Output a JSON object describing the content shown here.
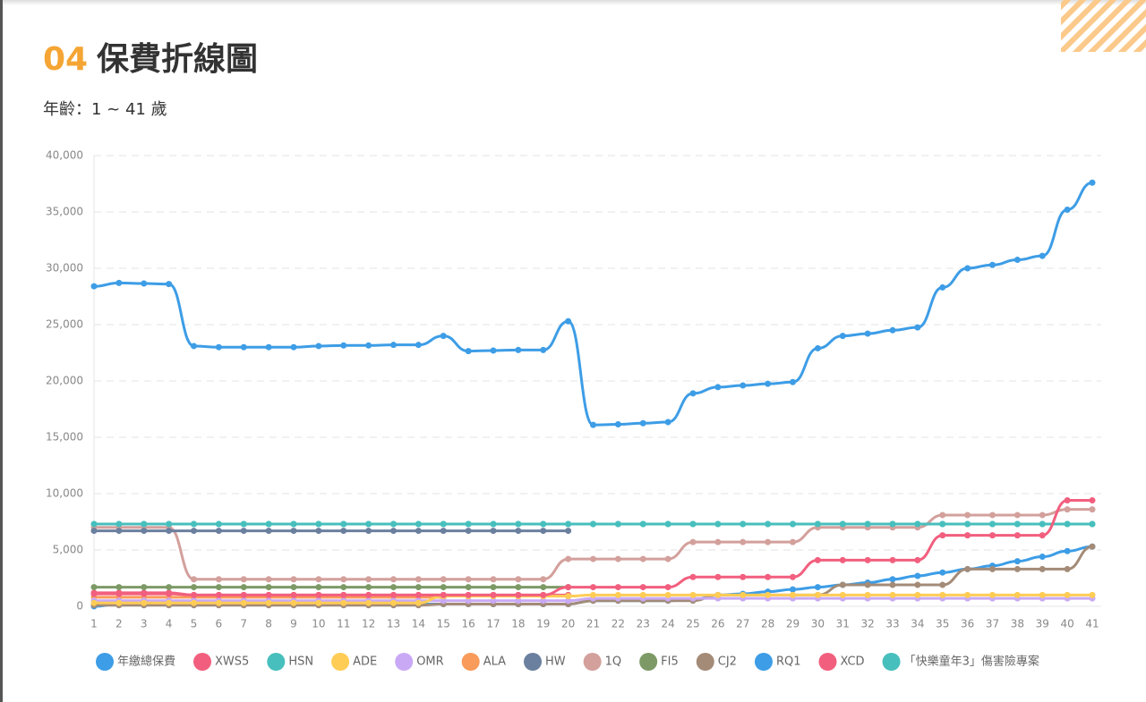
{
  "section": "04",
  "chart_data": {
    "type": "line",
    "title": "保費折線圖",
    "subtitle": "年齡：1 ~ 41 歲",
    "categories": [
      1,
      2,
      3,
      4,
      5,
      6,
      7,
      8,
      9,
      10,
      11,
      12,
      13,
      14,
      15,
      16,
      17,
      18,
      19,
      20,
      21,
      22,
      23,
      24,
      25,
      26,
      27,
      28,
      29,
      30,
      31,
      32,
      33,
      34,
      35,
      36,
      37,
      38,
      39,
      40,
      41
    ],
    "ylim": [
      0,
      40000
    ],
    "yticks": [
      0,
      {
        "value": 5000,
        "label": "5,000"
      },
      {
        "value": 10000,
        "label": "10,000"
      },
      {
        "value": 15000,
        "label": "15,000"
      },
      {
        "value": 20000,
        "label": "20,000"
      },
      {
        "value": 25000,
        "label": "25,000"
      },
      {
        "value": 30000,
        "label": "30,000"
      },
      {
        "value": 35000,
        "label": "35,000"
      },
      {
        "value": 40000,
        "label": "40,000"
      }
    ],
    "grid": true,
    "legend": "bottom",
    "series": [
      {
        "name": "年繳總保費",
        "color": "#3d9de6",
        "values": [
          28400,
          28700,
          28650,
          28600,
          23100,
          23000,
          23000,
          23000,
          23000,
          23100,
          23150,
          23150,
          23200,
          23200,
          24000,
          22650,
          22700,
          22750,
          22750,
          25300,
          16100,
          16150,
          16250,
          16350,
          18900,
          19450,
          19600,
          19750,
          19900,
          22900,
          24000,
          24200,
          24500,
          24750,
          28300,
          30000,
          30300,
          30750,
          31100,
          35200,
          37600
        ]
      },
      {
        "name": "XWS5",
        "color": "#f25f7e",
        "values": [
          1100,
          1100,
          1100,
          1100,
          1000,
          1000,
          1000,
          1000,
          1000,
          1000,
          1000,
          1000,
          1000,
          1000,
          1000,
          1000,
          1000,
          1000,
          1000,
          1700,
          1700,
          1700,
          1700,
          1700,
          2600,
          2600,
          2600,
          2600,
          2600,
          4100,
          4100,
          4100,
          4100,
          4100,
          6300,
          6300,
          6300,
          6300,
          6300,
          9400,
          9400
        ]
      },
      {
        "name": "HSN",
        "color": "#47bfbd",
        "values": [
          7300,
          7300,
          7300,
          7300,
          7300,
          7300,
          7300,
          7300,
          7300,
          7300,
          7300,
          7300,
          7300,
          7300,
          7300,
          7300,
          7300,
          7300,
          7300,
          7300,
          7300,
          7300,
          7300,
          7300,
          7300,
          7300,
          7300,
          7300,
          7300,
          7300,
          7300,
          7300,
          7300,
          7300,
          7300,
          7300,
          7300,
          7300,
          7300,
          7300,
          7300
        ]
      },
      {
        "name": "ADE",
        "color": "#ffcc55",
        "values": [
          300,
          300,
          300,
          300,
          300,
          300,
          300,
          300,
          300,
          300,
          300,
          300,
          300,
          300,
          900,
          900,
          900,
          900,
          900,
          900,
          1000,
          1000,
          1000,
          1000,
          1000,
          1000,
          1000,
          1000,
          1000,
          1000,
          1000,
          1000,
          1000,
          1000,
          1000,
          1000,
          1000,
          1000,
          1000,
          1000,
          1000
        ]
      },
      {
        "name": "OMR",
        "color": "#c9a9f5",
        "values": [
          500,
          500,
          500,
          500,
          500,
          500,
          500,
          500,
          500,
          500,
          500,
          500,
          500,
          500,
          500,
          500,
          500,
          500,
          500,
          500,
          700,
          700,
          700,
          700,
          700,
          700,
          700,
          700,
          700,
          700,
          700,
          700,
          700,
          700,
          700,
          700,
          700,
          700,
          700,
          700,
          700
        ]
      },
      {
        "name": "ALA",
        "color": "#f99b5a",
        "values": [
          800,
          800,
          800,
          800,
          800,
          800,
          800,
          800,
          800,
          800,
          800,
          800,
          800,
          800,
          800,
          null,
          null,
          null,
          null,
          null,
          null,
          null,
          null,
          null,
          null,
          null,
          null,
          null,
          null,
          null,
          null,
          null,
          null,
          null,
          null,
          null,
          null,
          null,
          null,
          null,
          null
        ]
      },
      {
        "name": "HW",
        "color": "#6b7f9e",
        "values": [
          6700,
          6700,
          6700,
          6700,
          6700,
          6700,
          6700,
          6700,
          6700,
          6700,
          6700,
          6700,
          6700,
          6700,
          6700,
          6700,
          6700,
          6700,
          6700,
          6700,
          null,
          null,
          null,
          null,
          null,
          null,
          null,
          null,
          null,
          null,
          null,
          null,
          null,
          null,
          null,
          null,
          null,
          null,
          null,
          null,
          null
        ]
      },
      {
        "name": "1Q",
        "color": "#d3a09c",
        "values": [
          7000,
          7000,
          7000,
          7000,
          2400,
          2400,
          2400,
          2400,
          2400,
          2400,
          2400,
          2400,
          2400,
          2400,
          2400,
          2400,
          2400,
          2400,
          2400,
          4200,
          4200,
          4200,
          4200,
          4200,
          5700,
          5700,
          5700,
          5700,
          5700,
          7000,
          7000,
          7000,
          7000,
          7000,
          8100,
          8100,
          8100,
          8100,
          8100,
          8600,
          8600
        ]
      },
      {
        "name": "FI5",
        "color": "#7d9a66",
        "values": [
          1700,
          1700,
          1700,
          1700,
          1700,
          1700,
          1700,
          1700,
          1700,
          1700,
          1700,
          1700,
          1700,
          1700,
          1700,
          1700,
          1700,
          1700,
          1700,
          1700,
          null,
          null,
          null,
          null,
          null,
          null,
          null,
          null,
          null,
          null,
          null,
          null,
          null,
          null,
          null,
          null,
          null,
          null,
          null,
          null,
          null
        ]
      },
      {
        "name": "CJ2",
        "color": "#a38b78",
        "values": [
          100,
          100,
          100,
          100,
          100,
          100,
          100,
          100,
          100,
          100,
          100,
          100,
          100,
          100,
          200,
          200,
          200,
          200,
          200,
          200,
          500,
          500,
          500,
          500,
          500,
          1000,
          1000,
          1000,
          1000,
          1000,
          1900,
          1900,
          1900,
          1900,
          1900,
          3300,
          3300,
          3300,
          3300,
          3300,
          5300
        ]
      },
      {
        "name": "RQ1",
        "color": "#3d9de6",
        "values": [
          0,
          200,
          200,
          200,
          200,
          200,
          200,
          200,
          200,
          200,
          200,
          200,
          200,
          200,
          200,
          200,
          200,
          200,
          200,
          200,
          500,
          500,
          500,
          500,
          600,
          1000,
          1100,
          1300,
          1500,
          1700,
          1900,
          2100,
          2400,
          2700,
          3000,
          3300,
          3600,
          4000,
          4400,
          4900,
          5300
        ]
      },
      {
        "name": "XCD",
        "color": "#f25f7e",
        "values": [
          1200,
          1200,
          1200,
          1200,
          1000,
          1000,
          1000,
          1000,
          1000,
          1000,
          1000,
          1000,
          1000,
          1000,
          1000,
          1000,
          1000,
          1000,
          1000,
          1000,
          null,
          null,
          null,
          null,
          null,
          null,
          null,
          null,
          null,
          null,
          null,
          null,
          null,
          null,
          null,
          null,
          null,
          null,
          null,
          null,
          null
        ]
      },
      {
        "name": "「快樂童年3」傷害險專案",
        "color": "#47bfbd",
        "values": [
          7300,
          7300,
          7300,
          7300,
          7300,
          7300,
          7300,
          7300,
          7300,
          7300,
          7300,
          7300,
          7300,
          7300,
          7300,
          7300,
          7300,
          7300,
          7300,
          7300,
          7300,
          7300,
          7300,
          7300,
          7300,
          7300,
          7300,
          7300,
          7300,
          7300,
          7300,
          7300,
          7300,
          7300,
          7300,
          7300,
          7300,
          7300,
          7300,
          7300,
          7300
        ]
      }
    ]
  }
}
